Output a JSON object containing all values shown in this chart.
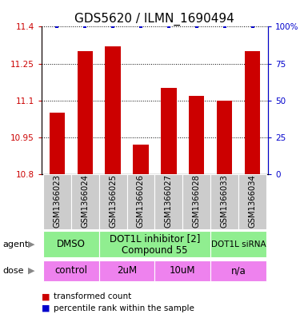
{
  "title": "GDS5620 / ILMN_1690494",
  "samples": [
    "GSM1366023",
    "GSM1366024",
    "GSM1366025",
    "GSM1366026",
    "GSM1366027",
    "GSM1366028",
    "GSM1366033",
    "GSM1366034"
  ],
  "transformed_counts": [
    11.05,
    11.3,
    11.32,
    10.92,
    11.15,
    11.12,
    11.1,
    11.3
  ],
  "percentile_ranks": [
    100,
    100,
    100,
    100,
    100,
    100,
    100,
    100
  ],
  "ylim_left": [
    10.8,
    11.4
  ],
  "yticks_left": [
    10.8,
    10.95,
    11.1,
    11.25,
    11.4
  ],
  "yticks_right": [
    0,
    25,
    50,
    75,
    100
  ],
  "ylim_right": [
    0,
    100
  ],
  "bar_color": "#cc0000",
  "dot_color": "#0000cc",
  "sample_bg_color": "#cccccc",
  "agent_color": "#90ee90",
  "dose_color": "#ee82ee",
  "title_fontsize": 11,
  "left_tick_color": "#cc0000",
  "right_tick_color": "#0000cc",
  "agent_groups": [
    {
      "label": "DMSO",
      "start": 0,
      "end": 2
    },
    {
      "label": "DOT1L inhibitor [2]\nCompound 55",
      "start": 2,
      "end": 6
    },
    {
      "label": "DOT1L siRNA",
      "start": 6,
      "end": 8
    }
  ],
  "dose_groups": [
    {
      "label": "control",
      "start": 0,
      "end": 2
    },
    {
      "label": "2uM",
      "start": 2,
      "end": 4
    },
    {
      "label": "10uM",
      "start": 4,
      "end": 6
    },
    {
      "label": "n/a",
      "start": 6,
      "end": 8
    }
  ]
}
